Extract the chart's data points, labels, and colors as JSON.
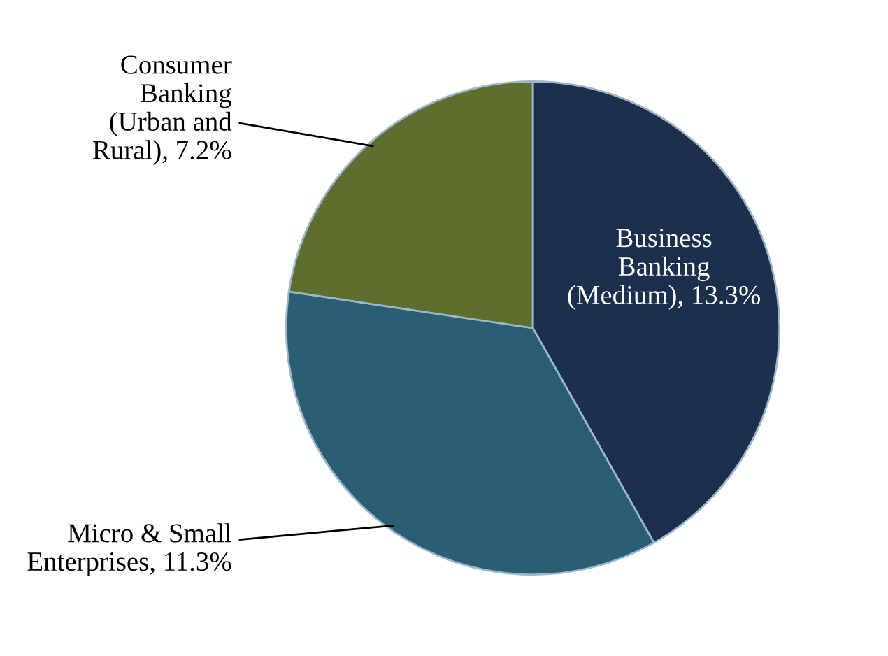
{
  "chart_data": {
    "type": "pie",
    "categories": [
      "Business\nBanking\n(Medium)",
      "Micro & Small\nEnterprises",
      "Consumer\nBanking\n(Urban and\nRural)"
    ],
    "values": [
      13.3,
      11.3,
      7.2
    ],
    "value_labels": [
      "13.3%",
      "11.3%",
      "7.2%"
    ],
    "colors": [
      "#1c2f4d",
      "#2a5f73",
      "#5e6e2e"
    ]
  }
}
